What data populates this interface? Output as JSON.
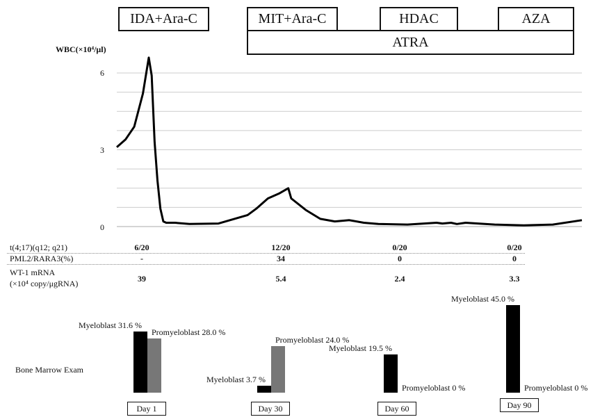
{
  "treatments": [
    {
      "label": "IDA+Ara-C"
    },
    {
      "label": "MIT+Ara-C"
    },
    {
      "label": "HDAC"
    },
    {
      "label": "AZA"
    },
    {
      "label": "ATRA"
    }
  ],
  "chart_data": [
    {
      "type": "line",
      "ylabel": "WBC(×10⁴/μl)",
      "ylim": [
        0,
        6.6
      ],
      "yticks": [
        0,
        3,
        6
      ],
      "grid": true,
      "series": [
        {
          "x": [
            0,
            3,
            6,
            9,
            11,
            12,
            13,
            14,
            15,
            16,
            17,
            20,
            25,
            35,
            45,
            48,
            52,
            56,
            59,
            60,
            65,
            70,
            75,
            80,
            85,
            90,
            100,
            110,
            112,
            115,
            117,
            120,
            130,
            140,
            150,
            160
          ],
          "y": [
            3.1,
            3.4,
            3.9,
            5.2,
            6.6,
            5.9,
            3.3,
            1.8,
            0.7,
            0.2,
            0.15,
            0.15,
            0.1,
            0.12,
            0.45,
            0.7,
            1.1,
            1.3,
            1.5,
            1.1,
            0.65,
            0.3,
            0.2,
            0.25,
            0.15,
            0.1,
            0.08,
            0.15,
            0.12,
            0.15,
            0.1,
            0.15,
            0.08,
            0.05,
            0.08,
            0.25
          ]
        }
      ]
    },
    {
      "type": "bar",
      "title": "Bone Marrow Exam",
      "categories": [
        "Day 1",
        "Day 30",
        "Day 60",
        "Day 90"
      ],
      "series": [
        {
          "name": "Myeloblast",
          "color": "#000000",
          "values": [
            31.6,
            3.7,
            19.5,
            45.0
          ]
        },
        {
          "name": "Promyeloblast",
          "color": "#777777",
          "values": [
            28.0,
            24.0,
            0,
            0
          ]
        }
      ],
      "labels": {
        "myeloblast": [
          "Myeloblast 31.6 %",
          "Myeloblast 3.7 %",
          "Myeloblast 19.5 %",
          "Myeloblast 45.0 %"
        ],
        "promyeloblast": [
          "Promyeloblast 28.0 %",
          "Promyeloblast 24.0 %",
          "Promyeloblast 0 %",
          "Promyeloblast 0 %"
        ]
      }
    }
  ],
  "table": {
    "rows": [
      {
        "label": "t(4;17)(q12; q21)",
        "values": [
          "6/20",
          "12/20",
          "0/20",
          "0/20"
        ]
      },
      {
        "label": "PML2/RARA3(%)",
        "values": [
          "-",
          "34",
          "0",
          "0"
        ]
      },
      {
        "label1": "WT-1 mRNA",
        "label2": "(×10⁴ copy/μgRNA)",
        "values": [
          "39",
          "5.4",
          "2.4",
          "3.3"
        ]
      }
    ]
  },
  "colors": {
    "myeloblast": "#000000",
    "promyeloblast": "#777777",
    "line": "#000000",
    "grid": "#cccccc"
  }
}
